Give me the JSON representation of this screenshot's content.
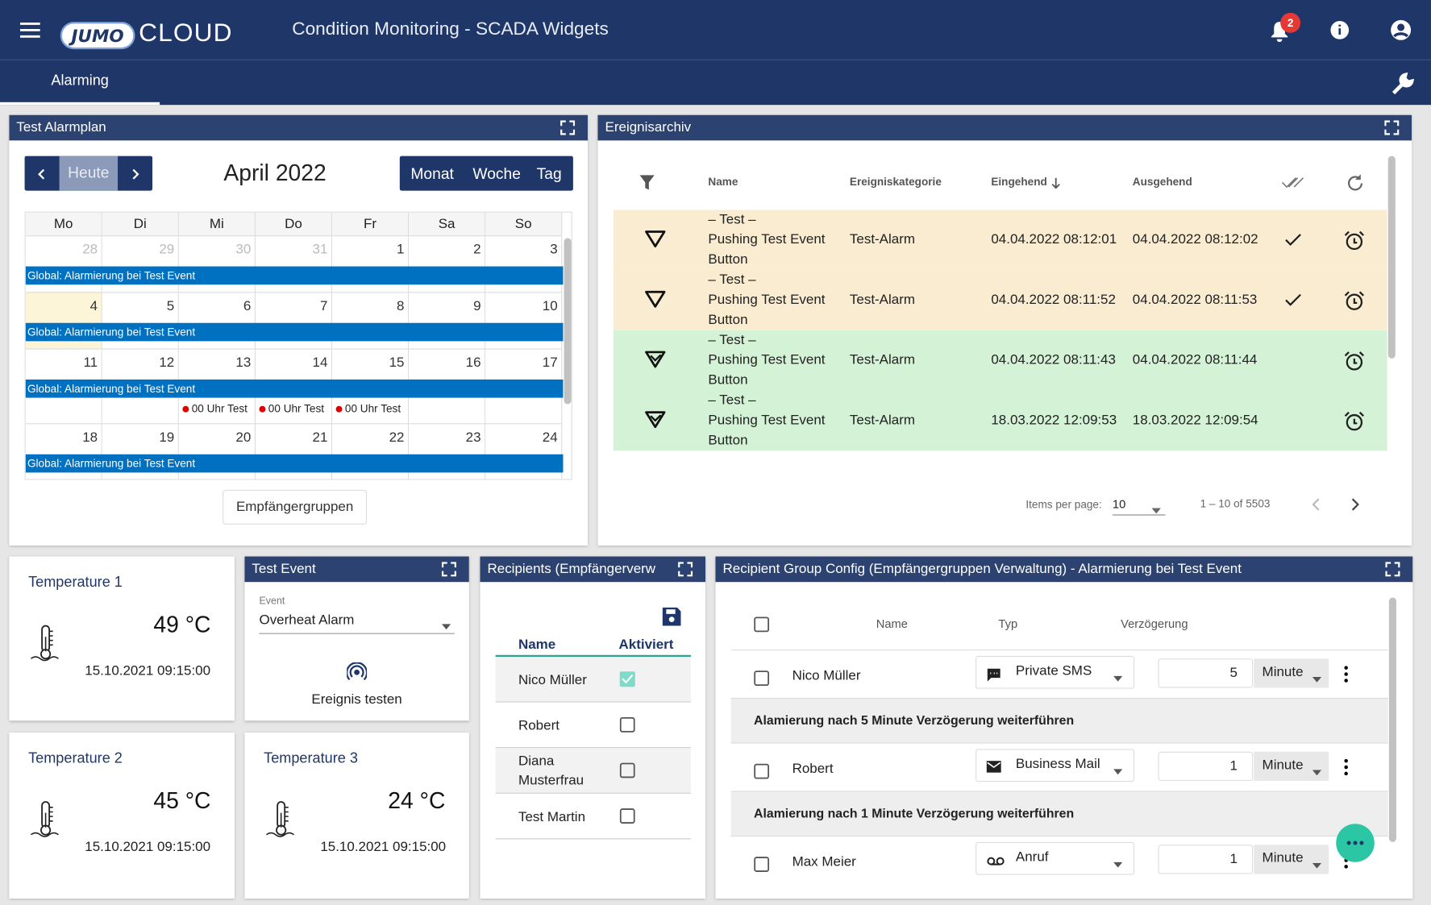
{
  "header": {
    "logo": "JUMO",
    "logo_cloud": "CLOUD",
    "title": "Condition Monitoring  - SCADA Widgets",
    "notification_count": 2,
    "tab": "Alarming"
  },
  "calendar": {
    "title": "Test Alarmplan",
    "today_button": "Heute",
    "month": "April 2022",
    "views": [
      "Monat",
      "Woche",
      "Tag"
    ],
    "weekdays": [
      "Mo",
      "Di",
      "Mi",
      "Do",
      "Fr",
      "Sa",
      "So"
    ],
    "weeks": [
      [
        28,
        29,
        30,
        31,
        1,
        2,
        3
      ],
      [
        4,
        5,
        6,
        7,
        8,
        9,
        10
      ],
      [
        11,
        12,
        13,
        14,
        15,
        16,
        17
      ],
      [
        18,
        19,
        20,
        21,
        22,
        23,
        24
      ]
    ],
    "today": 4,
    "event": "Global: Alarmierung bei Test Event",
    "small_events": [
      {
        "day": 13,
        "label": "00 Uhr Test"
      },
      {
        "day": 14,
        "label": "00 Uhr Test"
      },
      {
        "day": 15,
        "label": "00 Uhr Test"
      }
    ],
    "button": "Empfängergruppen"
  },
  "archive": {
    "title": "Ereignisarchiv",
    "columns": [
      "Name",
      "Ereigniskategorie",
      "Eingehend",
      "Ausgehend"
    ],
    "rows": [
      {
        "name": [
          "– Test –",
          "Pushing Test Event",
          "Button"
        ],
        "category": "Test-Alarm",
        "incoming": "04.04.2022 08:12:01",
        "outgoing": "04.04.2022 08:12:02",
        "acknowledged": true,
        "state": "active"
      },
      {
        "name": [
          "– Test –",
          "Pushing Test Event",
          "Button"
        ],
        "category": "Test-Alarm",
        "incoming": "04.04.2022 08:11:52",
        "outgoing": "04.04.2022 08:11:53",
        "acknowledged": true,
        "state": "active"
      },
      {
        "name": [
          "– Test –",
          "Pushing Test Event",
          "Button"
        ],
        "category": "Test-Alarm",
        "incoming": "04.04.2022 08:11:43",
        "outgoing": "04.04.2022 08:11:44",
        "acknowledged": false,
        "state": "resolved"
      },
      {
        "name": [
          "– Test –",
          "Pushing Test Event",
          "Button"
        ],
        "category": "Test-Alarm",
        "incoming": "18.03.2022 12:09:53",
        "outgoing": "18.03.2022 12:09:54",
        "acknowledged": false,
        "state": "resolved"
      }
    ],
    "items_label": "Items per page:",
    "per_page": 10,
    "range": "1 – 10 of 5503"
  },
  "temperatures": [
    {
      "title": "Temperature 1",
      "value": "49 °C",
      "timestamp": "15.10.2021  09:15:00"
    },
    {
      "title": "Temperature 2",
      "value": "45 °C",
      "timestamp": "15.10.2021  09:15:00"
    },
    {
      "title": "Temperature 3",
      "value": "24 °C",
      "timestamp": "15.10.2021  09:15:00"
    }
  ],
  "test_event": {
    "title": "Test Event",
    "field_label": "Event",
    "value": "Overheat Alarm",
    "button": "Ereignis testen"
  },
  "recipients": {
    "title": "Recipients (Empfängerverw",
    "columns": [
      "Name",
      "Aktiviert"
    ],
    "rows": [
      {
        "name": "Nico Müller",
        "active": true
      },
      {
        "name": "Robert",
        "active": false
      },
      {
        "name": "Diana Musterfrau",
        "active": false
      },
      {
        "name": "Test Martin",
        "active": false
      }
    ]
  },
  "group_config": {
    "title": "Recipient Group Config (Empfängergruppen Verwaltung) - Alarmierung bei Test Event",
    "columns": [
      "Name",
      "Typ",
      "Verzögerung"
    ],
    "rows": [
      {
        "name": "Nico Müller",
        "type": "Private SMS",
        "icon": "sms",
        "delay": 5,
        "unit": "Minute",
        "continuation": "Alamierung nach 5 Minute Verzögerung weiterführen"
      },
      {
        "name": "Robert",
        "type": "Business Mail",
        "icon": "mail",
        "delay": 1,
        "unit": "Minute",
        "continuation": "Alamierung nach 1 Minute Verzögerung weiterführen"
      },
      {
        "name": "Max Meier",
        "type": "Anruf",
        "icon": "call",
        "delay": 1,
        "unit": "Minute"
      }
    ]
  }
}
